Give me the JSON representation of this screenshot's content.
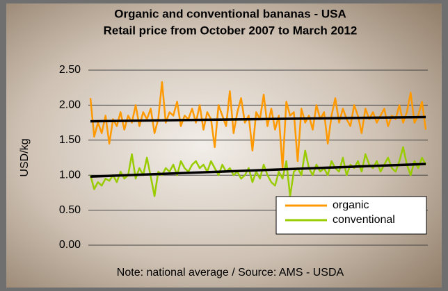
{
  "chart_data": {
    "type": "line",
    "title": "Organic and conventional bananas - USA",
    "subtitle": "Retail price from October 2007 to March 2012",
    "y_label": "USD/kg",
    "note": "Note: national average / Source: AMS - USDA",
    "ylim": [
      0,
      2.5
    ],
    "yticks": [
      {
        "value": 0,
        "label": "0.00"
      },
      {
        "value": 0.5,
        "label": "0.50"
      },
      {
        "value": 1,
        "label": "1.00"
      },
      {
        "value": 1.5,
        "label": "1.50"
      },
      {
        "value": 2,
        "label": "2.00"
      },
      {
        "value": 2.5,
        "label": "2.50"
      }
    ],
    "grid": true,
    "legend": "lower right",
    "series": [
      {
        "name": "organic",
        "color": "#ff9900",
        "values": [
          2.1,
          1.55,
          1.75,
          1.6,
          1.85,
          1.45,
          1.8,
          1.7,
          1.9,
          1.65,
          1.85,
          1.75,
          2.0,
          1.7,
          1.9,
          1.8,
          1.95,
          1.6,
          1.8,
          2.33,
          1.75,
          1.9,
          1.85,
          2.05,
          1.7,
          1.85,
          1.8,
          1.95,
          1.75,
          2.0,
          1.65,
          1.9,
          1.8,
          1.4,
          2.0,
          1.85,
          1.7,
          2.2,
          1.6,
          1.9,
          2.1,
          1.75,
          1.85,
          1.35,
          1.9,
          1.8,
          2.15,
          1.7,
          1.95,
          1.65,
          1.85,
          1.1,
          2.05,
          1.85,
          1.9,
          1.2,
          1.95,
          1.75,
          1.85,
          1.65,
          2.0,
          1.8,
          1.9,
          1.45,
          1.85,
          2.1,
          1.75,
          1.95,
          1.8,
          1.7,
          2.0,
          1.85,
          1.6,
          1.95,
          1.8,
          1.9,
          1.75,
          1.85,
          1.95,
          1.7,
          1.85,
          1.8,
          2.0,
          1.75,
          1.9,
          2.18,
          1.75,
          1.85,
          2.05,
          1.65
        ]
      },
      {
        "name": "conventional",
        "color": "#99cc00",
        "values": [
          1.0,
          0.8,
          0.9,
          0.85,
          0.95,
          0.92,
          1.0,
          0.9,
          1.05,
          0.95,
          1.0,
          1.3,
          0.95,
          1.1,
          1.0,
          1.25,
          0.98,
          0.7,
          1.05,
          1.0,
          1.1,
          1.05,
          1.15,
          1.0,
          1.2,
          1.1,
          1.05,
          1.15,
          1.2,
          1.1,
          1.15,
          1.05,
          1.2,
          1.1,
          1.0,
          1.15,
          1.05,
          1.1,
          1.0,
          1.05,
          0.95,
          1.0,
          1.1,
          0.9,
          1.05,
          0.95,
          1.15,
          1.0,
          0.9,
          0.85,
          1.05,
          0.95,
          1.2,
          0.7,
          1.05,
          1.1,
          1.0,
          1.35,
          1.1,
          1.0,
          1.15,
          1.05,
          1.1,
          1.0,
          1.2,
          1.1,
          1.05,
          1.25,
          1.0,
          1.15,
          1.1,
          1.2,
          1.05,
          1.3,
          1.15,
          1.1,
          1.2,
          1.05,
          1.15,
          1.25,
          1.1,
          1.05,
          1.2,
          1.4,
          1.15,
          1.0,
          1.2,
          1.1,
          1.25,
          1.15
        ]
      }
    ],
    "trendlines": [
      {
        "color": "#000000",
        "values": [
          1.77,
          1.83
        ]
      },
      {
        "color": "#000000",
        "values": [
          0.98,
          1.16
        ]
      }
    ]
  }
}
